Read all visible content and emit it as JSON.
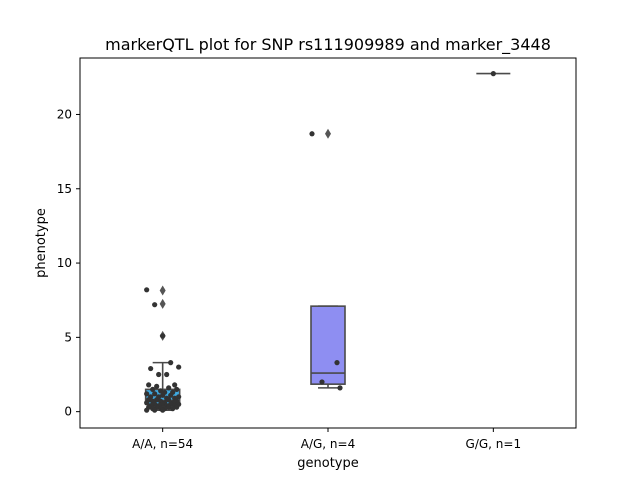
{
  "chart_data": {
    "type": "box",
    "title": "markerQTL plot for SNP rs111909989 and marker_3448",
    "xlabel": "genotype",
    "ylabel": "phenotype",
    "ylim": [
      -1.1,
      23.8
    ],
    "yticks": [
      0,
      5,
      10,
      15,
      20
    ],
    "grid": false,
    "categories": [
      "A/A, n=54",
      "A/G, n=4",
      "G/G, n=1"
    ],
    "boxes": [
      {
        "category": "A/A, n=54",
        "color": "#3fa9e0",
        "q1": 0.5,
        "median": 0.75,
        "q3": 1.5,
        "whisker_low": 0.1,
        "whisker_high": 3.3,
        "outliers": [
          5.1,
          7.25,
          8.15
        ]
      },
      {
        "category": "A/G, n=4",
        "color": "#8e8ef2",
        "q1": 1.85,
        "median": 2.6,
        "q3": 7.1,
        "whisker_low": 1.6,
        "whisker_high": 7.1,
        "outliers": [
          18.7
        ]
      },
      {
        "category": "G/G, n=1",
        "color": "#8e8ef2",
        "q1": 22.75,
        "median": 22.75,
        "q3": 22.75,
        "whisker_low": 22.75,
        "whisker_high": 22.75,
        "outliers": []
      }
    ],
    "points": [
      {
        "category": "A/A, n=54",
        "values": [
          8.2,
          7.2,
          5.1,
          3.3,
          3.0,
          2.9,
          2.5,
          2.5,
          1.8,
          1.8,
          1.7,
          1.6,
          1.5,
          1.5,
          1.4,
          1.3,
          1.3,
          1.2,
          1.2,
          1.1,
          1.1,
          1.0,
          1.0,
          1.0,
          0.9,
          0.9,
          0.8,
          0.8,
          0.8,
          0.7,
          0.7,
          0.7,
          0.6,
          0.6,
          0.6,
          0.5,
          0.5,
          0.5,
          0.5,
          0.4,
          0.4,
          0.4,
          0.4,
          0.3,
          0.3,
          0.3,
          0.3,
          0.2,
          0.2,
          0.2,
          0.2,
          0.1,
          0.1,
          0.1
        ]
      },
      {
        "category": "A/G, n=4",
        "values": [
          18.7,
          3.3,
          2.0,
          1.6
        ]
      },
      {
        "category": "G/G, n=1",
        "values": [
          22.75
        ]
      }
    ]
  }
}
